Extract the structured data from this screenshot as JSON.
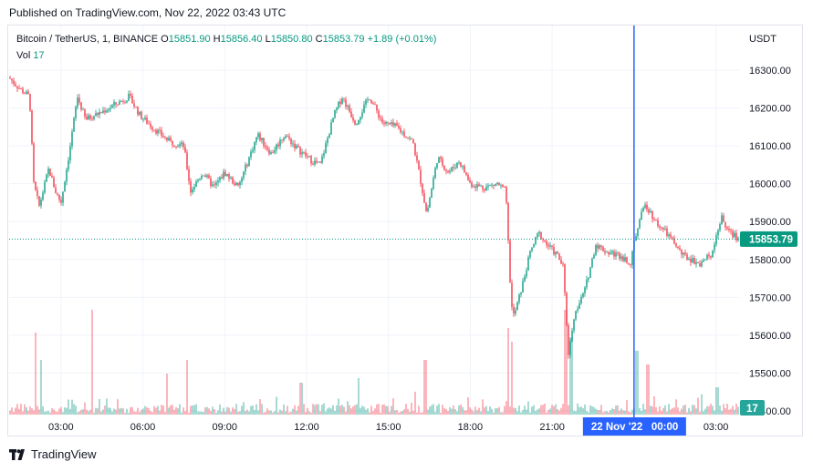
{
  "header": {
    "published": "Published on TradingView.com, Nov 22, 2022 03:43 UTC"
  },
  "legend": {
    "symbol": "Bitcoin / TetherUS, 1, BINANCE",
    "o_label": "O",
    "o_value": "15851.90",
    "h_label": "H",
    "h_value": "15856.40",
    "l_label": "L",
    "l_value": "15850.80",
    "c_label": "C",
    "c_value": "15853.79",
    "change": "+1.89 (+0.01%)",
    "vol_label": "Vol",
    "vol_value": "17"
  },
  "footer": {
    "brand": "TradingView"
  },
  "colors": {
    "up": "#089981",
    "down": "#f23645",
    "crosshair": "#2962ff",
    "grid": "#f0f3fa",
    "text": "#131722"
  },
  "chart_data": {
    "type": "candlestick",
    "currency": "USDT",
    "y_ticks": [
      "16300.00",
      "16200.00",
      "16100.00",
      "16000.00",
      "15900.00",
      "15800.00",
      "15700.00",
      "15600.00",
      "15500.00",
      "15400.00"
    ],
    "ylim": [
      15400,
      16320
    ],
    "x_ticks": [
      "03:00",
      "06:00",
      "09:00",
      "12:00",
      "15:00",
      "18:00",
      "21:00",
      "00:00",
      "03:00"
    ],
    "x_range_hours": [
      1.1,
      27.85
    ],
    "last_price": "15853.79",
    "last_price_value": 15853.79,
    "volume_badge": "17",
    "crosshair_label": "22 Nov '22   00:00",
    "crosshair_hour": 24.0,
    "close_path": [
      [
        1.1,
        16280
      ],
      [
        1.5,
        16250
      ],
      [
        1.85,
        16230
      ],
      [
        2.0,
        16000
      ],
      [
        2.2,
        15940
      ],
      [
        2.55,
        16040
      ],
      [
        2.8,
        15980
      ],
      [
        3.0,
        15950
      ],
      [
        3.3,
        16080
      ],
      [
        3.6,
        16230
      ],
      [
        3.9,
        16170
      ],
      [
        4.5,
        16190
      ],
      [
        5.0,
        16210
      ],
      [
        5.5,
        16230
      ],
      [
        5.9,
        16180
      ],
      [
        6.5,
        16140
      ],
      [
        7.0,
        16110
      ],
      [
        7.5,
        16100
      ],
      [
        7.75,
        15980
      ],
      [
        8.2,
        16030
      ],
      [
        8.6,
        15990
      ],
      [
        9.0,
        16030
      ],
      [
        9.5,
        15990
      ],
      [
        9.8,
        16050
      ],
      [
        10.2,
        16130
      ],
      [
        10.7,
        16080
      ],
      [
        11.2,
        16130
      ],
      [
        11.7,
        16090
      ],
      [
        12.2,
        16060
      ],
      [
        12.5,
        16050
      ],
      [
        13.0,
        16180
      ],
      [
        13.3,
        16230
      ],
      [
        13.8,
        16160
      ],
      [
        14.3,
        16230
      ],
      [
        14.8,
        16160
      ],
      [
        15.3,
        16150
      ],
      [
        15.9,
        16110
      ],
      [
        16.2,
        16000
      ],
      [
        16.4,
        15920
      ],
      [
        16.8,
        16070
      ],
      [
        17.2,
        16030
      ],
      [
        17.6,
        16060
      ],
      [
        18.0,
        16000
      ],
      [
        18.5,
        15990
      ],
      [
        19.0,
        16000
      ],
      [
        19.3,
        15980
      ],
      [
        19.5,
        15680
      ],
      [
        19.6,
        15650
      ],
      [
        19.9,
        15730
      ],
      [
        20.2,
        15820
      ],
      [
        20.5,
        15870
      ],
      [
        20.8,
        15840
      ],
      [
        21.2,
        15810
      ],
      [
        21.4,
        15780
      ],
      [
        21.6,
        15550
      ],
      [
        21.8,
        15650
      ],
      [
        22.2,
        15720
      ],
      [
        22.6,
        15840
      ],
      [
        23.0,
        15820
      ],
      [
        23.5,
        15810
      ],
      [
        23.9,
        15790
      ],
      [
        24.0,
        15850
      ],
      [
        24.4,
        15950
      ],
      [
        24.8,
        15900
      ],
      [
        25.3,
        15860
      ],
      [
        25.8,
        15810
      ],
      [
        26.4,
        15790
      ],
      [
        26.8,
        15810
      ],
      [
        27.2,
        15910
      ],
      [
        27.5,
        15870
      ],
      [
        27.85,
        15854
      ]
    ],
    "volume_spikes": [
      [
        2.05,
        90
      ],
      [
        2.25,
        60
      ],
      [
        4.15,
        115
      ],
      [
        6.9,
        45
      ],
      [
        7.6,
        60
      ],
      [
        11.8,
        35
      ],
      [
        13.9,
        40
      ],
      [
        16.35,
        60
      ],
      [
        19.4,
        95
      ],
      [
        19.5,
        80
      ],
      [
        21.5,
        115
      ],
      [
        21.7,
        85
      ],
      [
        24.1,
        70
      ],
      [
        24.5,
        55
      ],
      [
        27.05,
        30
      ]
    ]
  }
}
